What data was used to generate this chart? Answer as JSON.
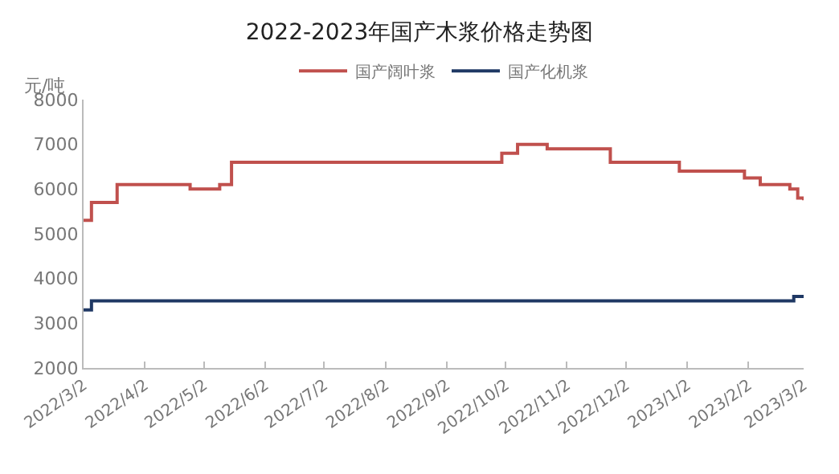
{
  "chart_data": {
    "type": "step",
    "title": "2022-2023年国产木浆价格走势图",
    "ylabel": "元/吨",
    "legend": "top",
    "grid": false,
    "xlim": [
      "2022-03-02",
      "2023-03-02"
    ],
    "xticks": [
      {
        "value": "2022-03-02",
        "label": "2022/3/2"
      },
      {
        "value": "2022-04-02",
        "label": "2022/4/2"
      },
      {
        "value": "2022-05-02",
        "label": "2022/5/2"
      },
      {
        "value": "2022-06-02",
        "label": "2022/6/2"
      },
      {
        "value": "2022-07-02",
        "label": "2022/7/2"
      },
      {
        "value": "2022-08-02",
        "label": "2022/8/2"
      },
      {
        "value": "2022-09-02",
        "label": "2022/9/2"
      },
      {
        "value": "2022-10-02",
        "label": "2022/10/2"
      },
      {
        "value": "2022-11-02",
        "label": "2022/11/2"
      },
      {
        "value": "2022-12-02",
        "label": "2022/12/2"
      },
      {
        "value": "2023-01-02",
        "label": "2023/1/2"
      },
      {
        "value": "2023-02-02",
        "label": "2023/2/2"
      },
      {
        "value": "2023-03-02",
        "label": "2023/3/2"
      }
    ],
    "ylim": [
      2000,
      8000
    ],
    "yticks": [
      2000,
      3000,
      4000,
      5000,
      6000,
      7000,
      8000
    ],
    "series": [
      {
        "name": "国产阔叶浆",
        "color": "#c0504d",
        "x": [
          "2022-03-02",
          "2022-03-06",
          "2022-03-19",
          "2022-04-25",
          "2022-05-10",
          "2022-05-16",
          "2022-09-30",
          "2022-10-08",
          "2022-10-23",
          "2022-11-24",
          "2022-12-29",
          "2023-01-31",
          "2023-02-08",
          "2023-02-23",
          "2023-02-27",
          "2023-03-02"
        ],
        "values": [
          5300,
          5700,
          6100,
          6000,
          6100,
          6600,
          6800,
          7000,
          6900,
          6600,
          6400,
          6250,
          6100,
          6000,
          5800,
          5750
        ]
      },
      {
        "name": "国产化机浆",
        "color": "#1f3864",
        "x": [
          "2022-03-02",
          "2022-03-06",
          "2023-02-25",
          "2023-03-02"
        ],
        "values": [
          3300,
          3500,
          3600,
          3600
        ]
      }
    ]
  }
}
